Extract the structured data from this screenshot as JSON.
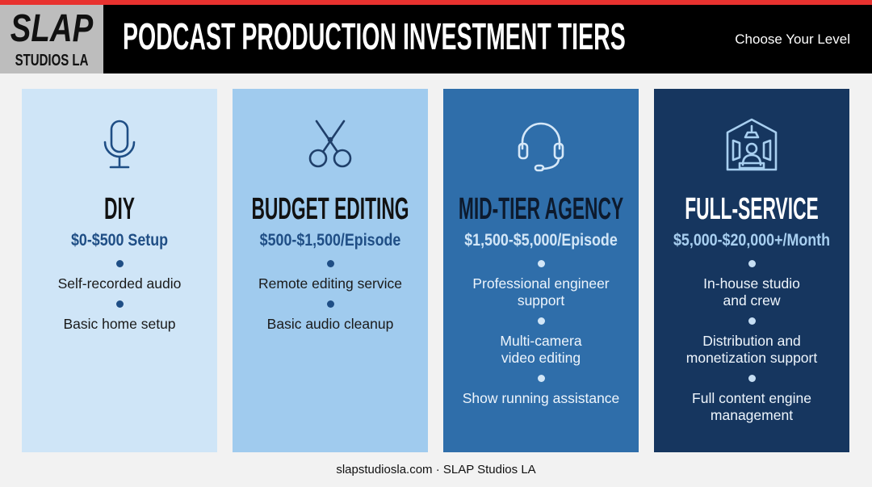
{
  "header": {
    "logo_top": "SLAP",
    "logo_bottom": "STUDIOS LA",
    "title": "PODCAST PRODUCTION INVESTMENT TIERS",
    "subtitle": "Choose Your Level"
  },
  "tiers": [
    {
      "name": "DIY",
      "price": "$0-$500 Setup",
      "items": [
        [
          "Self-recorded audio"
        ],
        [
          "Basic home setup"
        ]
      ]
    },
    {
      "name": "BUDGET EDITING",
      "price": "$500-$1,500/Episode",
      "items": [
        [
          "Remote editing service"
        ],
        [
          "Basic audio cleanup"
        ]
      ]
    },
    {
      "name": "MID-TIER AGENCY",
      "price": "$1,500-$5,000/Episode",
      "items": [
        [
          "Professional engineer",
          "support"
        ],
        [
          "Multi-camera",
          "video editing"
        ],
        [
          "Show running assistance"
        ]
      ]
    },
    {
      "name": "FULL-SERVICE",
      "price": "$5,000-$20,000+/Month",
      "items": [
        [
          "In-house studio",
          "and crew"
        ],
        [
          "Distribution and",
          "monetization support"
        ],
        [
          "Full content engine",
          "management"
        ]
      ]
    }
  ],
  "footer": "slapstudiosla.com · SLAP Studios LA"
}
